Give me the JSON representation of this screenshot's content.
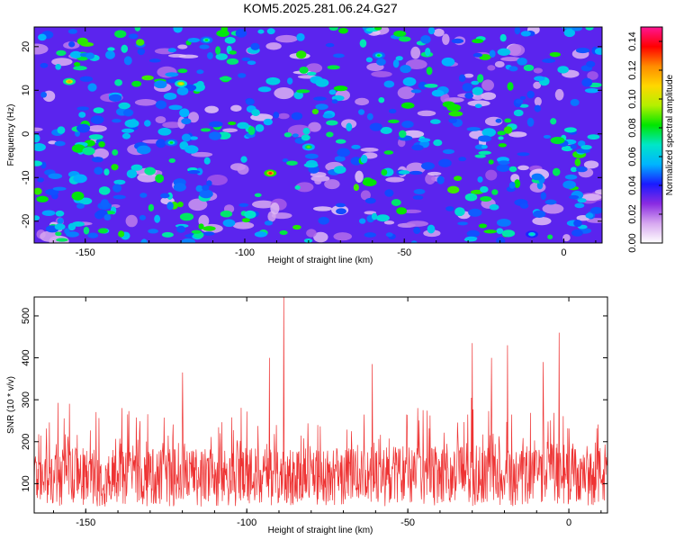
{
  "title": "KOM5.2025.281.06.24.G27",
  "chart_data": [
    {
      "type": "heatmap",
      "xlabel": "Height of straight line (km)",
      "ylabel": "Frequency (Hz)",
      "xlim": [
        -166,
        12
      ],
      "ylim": [
        -25,
        24.5
      ],
      "xticks": [
        -150,
        -100,
        -50,
        0
      ],
      "yticks": [
        20,
        10,
        0,
        -10,
        -20
      ],
      "colorbar": {
        "label": "Normalized spectral amplitude",
        "range": [
          0,
          0.15
        ],
        "ticks": [
          "0.00",
          "0.02",
          "0.04",
          "0.06",
          "0.08",
          "0.10",
          "0.12",
          "0.14"
        ],
        "colors": [
          "#ffffff",
          "#d7a8f0",
          "#8a2be2",
          "#1a1aff",
          "#00b4ff",
          "#00e6c8",
          "#00e600",
          "#b4f000",
          "#ffd700",
          "#ff8c00",
          "#ff0000",
          "#ff1493"
        ]
      },
      "peaks": [
        {
          "x": -92,
          "y": -9,
          "value": 0.14
        },
        {
          "x": -155,
          "y": 12,
          "value": 0.12
        },
        {
          "x": -120,
          "y": 11.5,
          "value": 0.11
        },
        {
          "x": -80,
          "y": -3,
          "value": 0.09
        },
        {
          "x": -112,
          "y": 21.5,
          "value": 0.08
        },
        {
          "x": -123,
          "y": -2,
          "value": 0.08
        },
        {
          "x": -58,
          "y": 18,
          "value": 0.08
        },
        {
          "x": -10,
          "y": -23,
          "value": 0.07
        }
      ]
    },
    {
      "type": "line",
      "xlabel": "Height of straight line (km)",
      "ylabel": "SNR (10 * v/v)",
      "xlim": [
        -166,
        12
      ],
      "ylim": [
        30,
        545
      ],
      "xticks": [
        -150,
        -100,
        -50,
        0
      ],
      "yticks": [
        100,
        200,
        300,
        400,
        500
      ],
      "color": "#ee3333",
      "series_summary": "dense noisy SNR trace, baseline mostly 60-260",
      "peaks": [
        {
          "x": -88.5,
          "y": 545
        },
        {
          "x": -93,
          "y": 400
        },
        {
          "x": -120,
          "y": 365
        },
        {
          "x": -61,
          "y": 385
        },
        {
          "x": -30,
          "y": 435
        },
        {
          "x": -19,
          "y": 430
        },
        {
          "x": -3,
          "y": 460
        },
        {
          "x": -24,
          "y": 400
        },
        {
          "x": -8,
          "y": 390
        }
      ]
    }
  ]
}
